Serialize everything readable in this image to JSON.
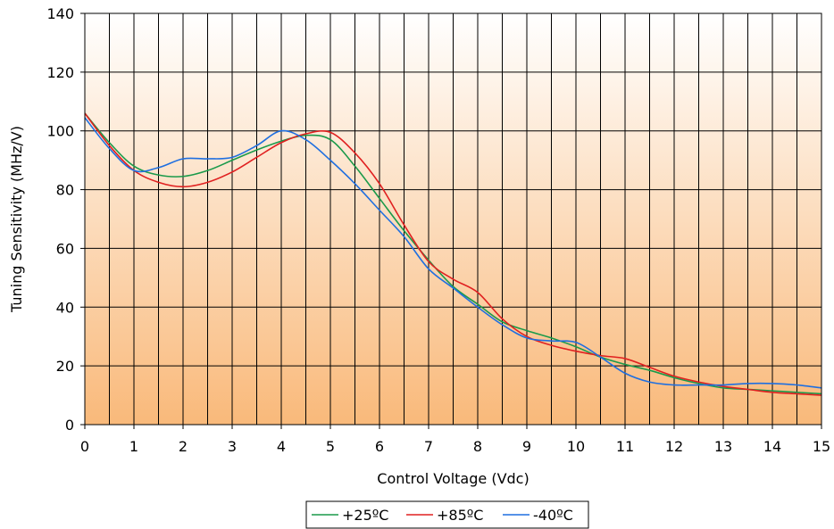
{
  "chart_data": {
    "type": "line",
    "title": "",
    "xlabel": "Control Voltage (Vdc)",
    "ylabel": "Tuning Sensitivity (MHz/V)",
    "xlim": [
      0,
      15
    ],
    "ylim": [
      0,
      140
    ],
    "x_ticks": [
      "0",
      "1",
      "2",
      "3",
      "4",
      "5",
      "6",
      "7",
      "8",
      "9",
      "10",
      "11",
      "12",
      "13",
      "14",
      "15"
    ],
    "y_ticks": [
      "0",
      "20",
      "40",
      "60",
      "80",
      "100",
      "120",
      "140"
    ],
    "grid": "on",
    "minor_x_grid_step": 0.5,
    "legend_position": "bottom-center",
    "background_gradient": [
      "#ffffff",
      "#f9b97a"
    ],
    "series": [
      {
        "name": "+25ºC",
        "color": "#1a9a4a",
        "x": [
          0,
          0.5,
          1,
          1.5,
          2,
          2.5,
          3,
          3.5,
          4,
          4.5,
          5,
          5.5,
          6,
          6.5,
          7,
          7.5,
          8,
          8.5,
          9,
          9.5,
          10,
          10.5,
          11,
          11.5,
          12,
          12.5,
          13,
          13.5,
          14,
          14.5,
          15
        ],
        "y": [
          106,
          96,
          88,
          85,
          84.5,
          86.5,
          90,
          93.5,
          96.5,
          98.5,
          97,
          88,
          77,
          66,
          56,
          47,
          41,
          35,
          32,
          29.5,
          26.5,
          23,
          20.5,
          18.5,
          16,
          14,
          12.5,
          12,
          11.5,
          11,
          10.5
        ]
      },
      {
        "name": "+85ºC",
        "color": "#e02020",
        "x": [
          0,
          0.5,
          1,
          1.5,
          2,
          2.5,
          3,
          3.5,
          4,
          4.5,
          5,
          5.5,
          6,
          6.5,
          7,
          7.5,
          8,
          8.5,
          9,
          9.5,
          10,
          10.5,
          11,
          11.5,
          12,
          12.5,
          13,
          13.5,
          14,
          14.5,
          15
        ],
        "y": [
          106,
          95,
          86.5,
          82.5,
          81,
          82.5,
          86,
          91,
          96,
          99,
          99.5,
          92.5,
          82,
          68,
          55.5,
          49.5,
          45,
          36,
          30,
          27,
          25,
          23.5,
          22.5,
          19.5,
          16.5,
          14.5,
          13,
          12,
          11,
          10.5,
          10
        ]
      },
      {
        "name": "-40ºC",
        "color": "#1f6fe0",
        "x": [
          0,
          0.5,
          1,
          1.5,
          2,
          2.5,
          3,
          3.5,
          4,
          4.5,
          5,
          5.5,
          6,
          6.5,
          7,
          7.5,
          8,
          8.5,
          9,
          9.5,
          10,
          10.5,
          11,
          11.5,
          12,
          12.5,
          13,
          13.5,
          14,
          14.5,
          15
        ],
        "y": [
          104.5,
          94,
          86.5,
          87.5,
          90.5,
          90.5,
          91,
          95,
          100,
          97,
          90,
          82,
          73,
          64,
          53,
          46.5,
          40,
          34,
          29.5,
          28.5,
          28,
          23,
          17.5,
          14.5,
          13.5,
          13.5,
          13.5,
          14,
          14,
          13.5,
          12.5
        ]
      }
    ]
  }
}
